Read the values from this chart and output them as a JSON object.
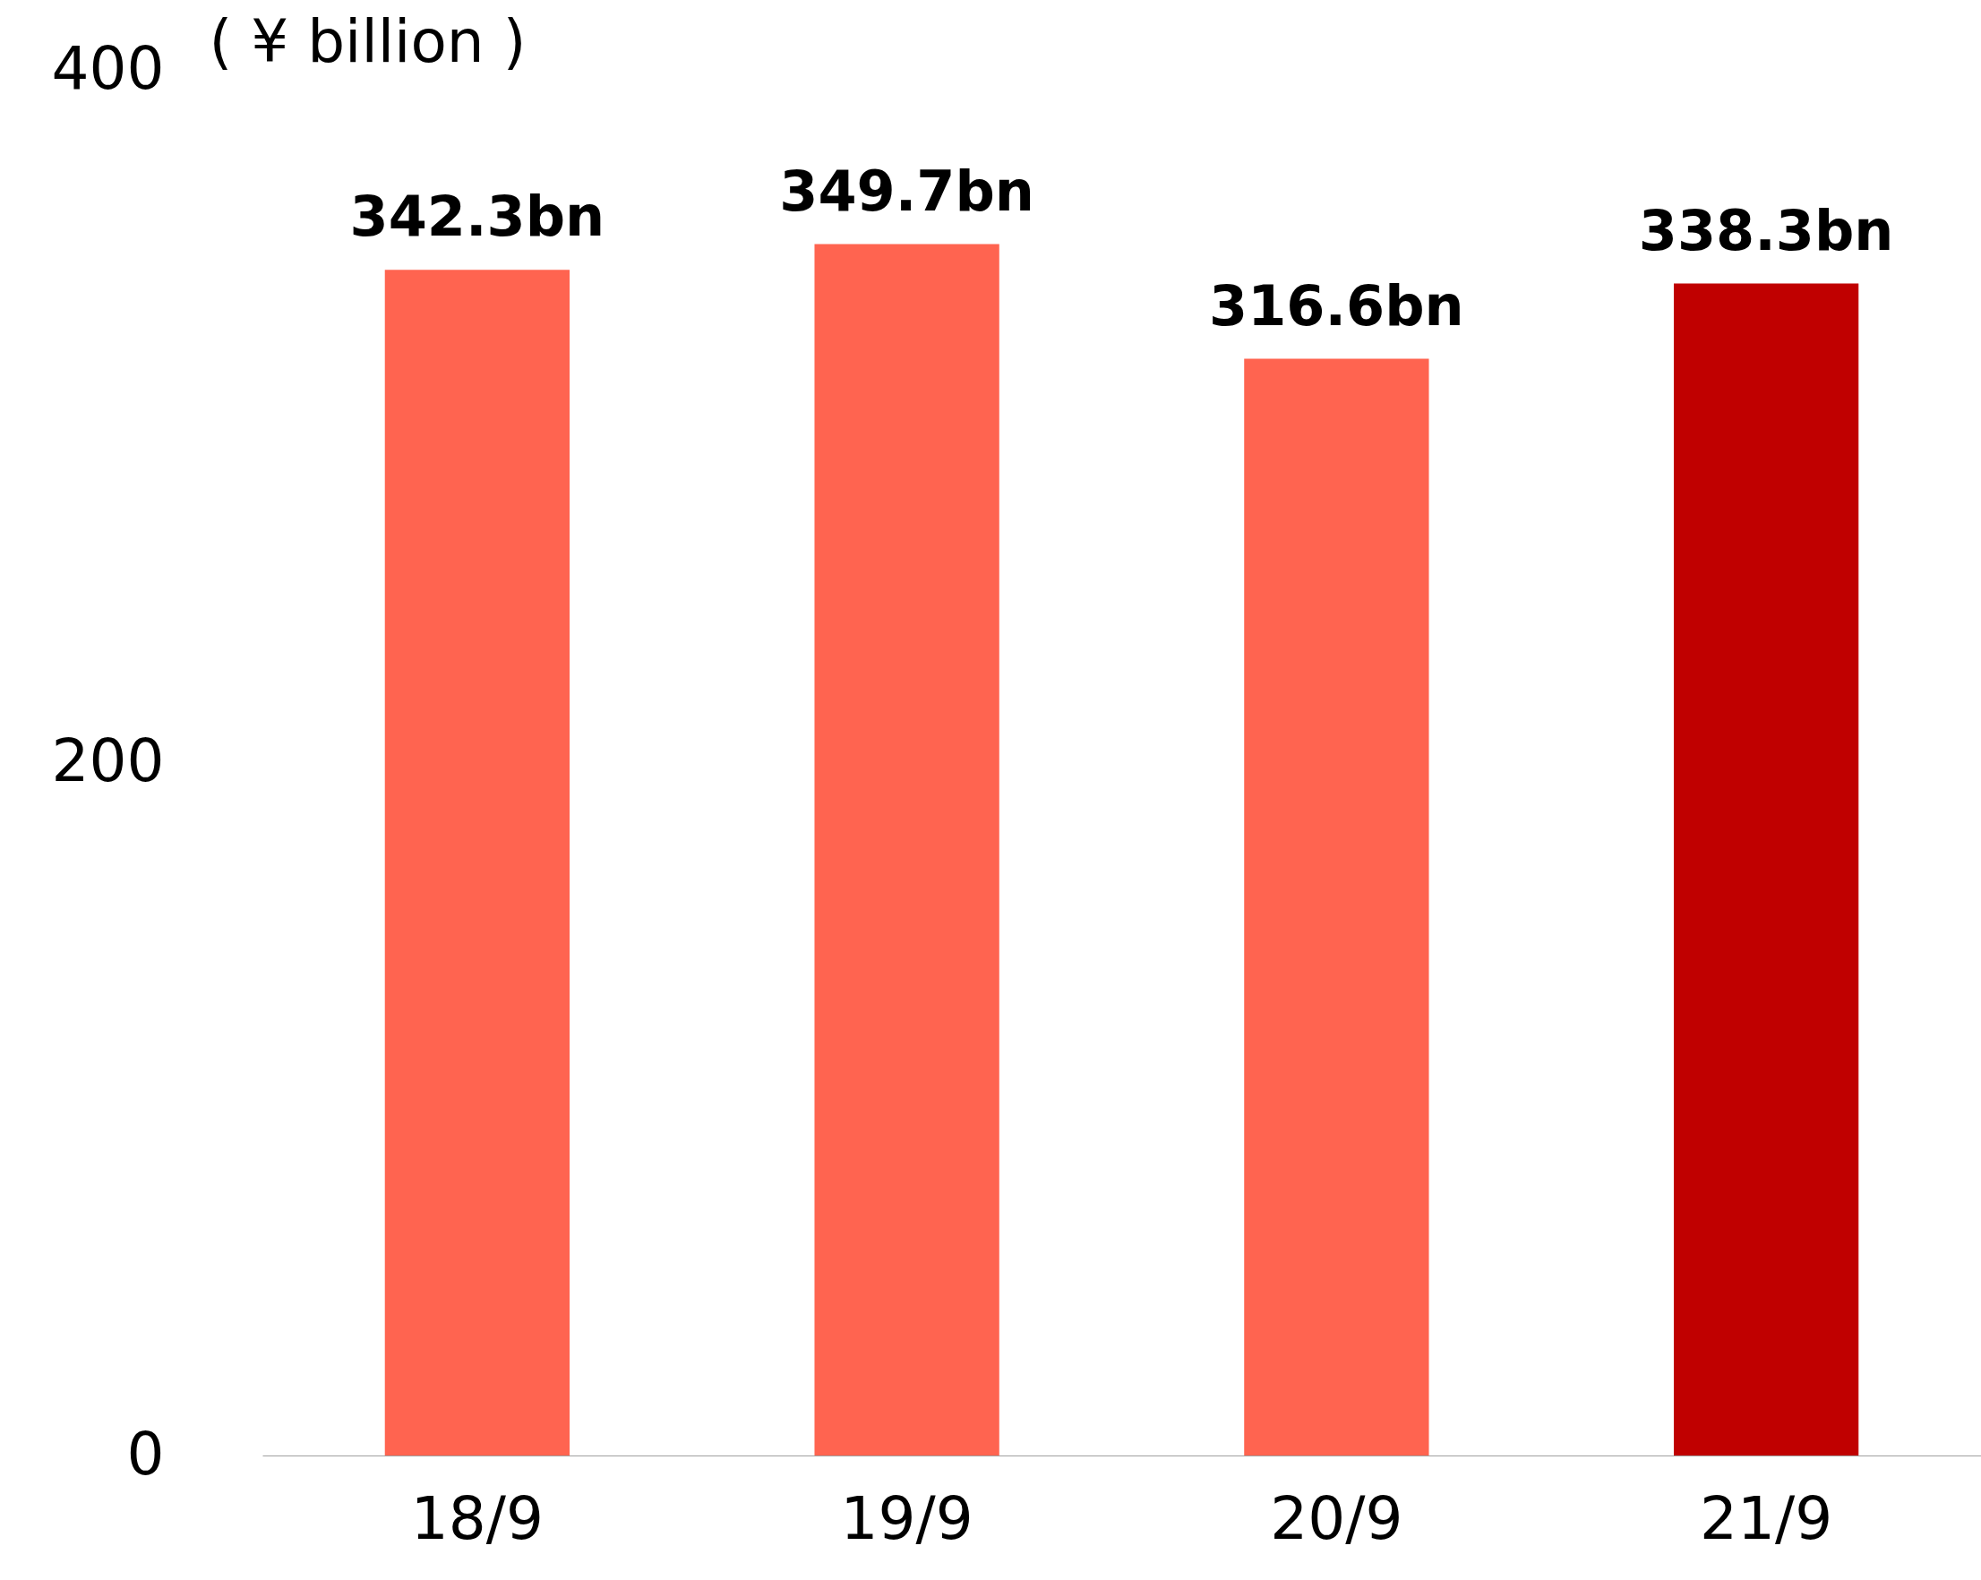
{
  "chart_data": {
    "type": "bar",
    "ylabel": "( ¥ billion )",
    "categories": [
      "18/9",
      "19/9",
      "20/9",
      "21/9"
    ],
    "values": [
      342.3,
      349.7,
      316.6,
      338.3
    ],
    "colors": [
      "#ff6450",
      "#ff6450",
      "#ff6450",
      "#c00000"
    ],
    "value_labels": [
      "342.3bn",
      "349.7bn",
      "316.6bn",
      "338.3bn"
    ],
    "ylim": [
      0,
      400
    ],
    "yticks": [
      0,
      200,
      400
    ],
    "grid": false
  }
}
